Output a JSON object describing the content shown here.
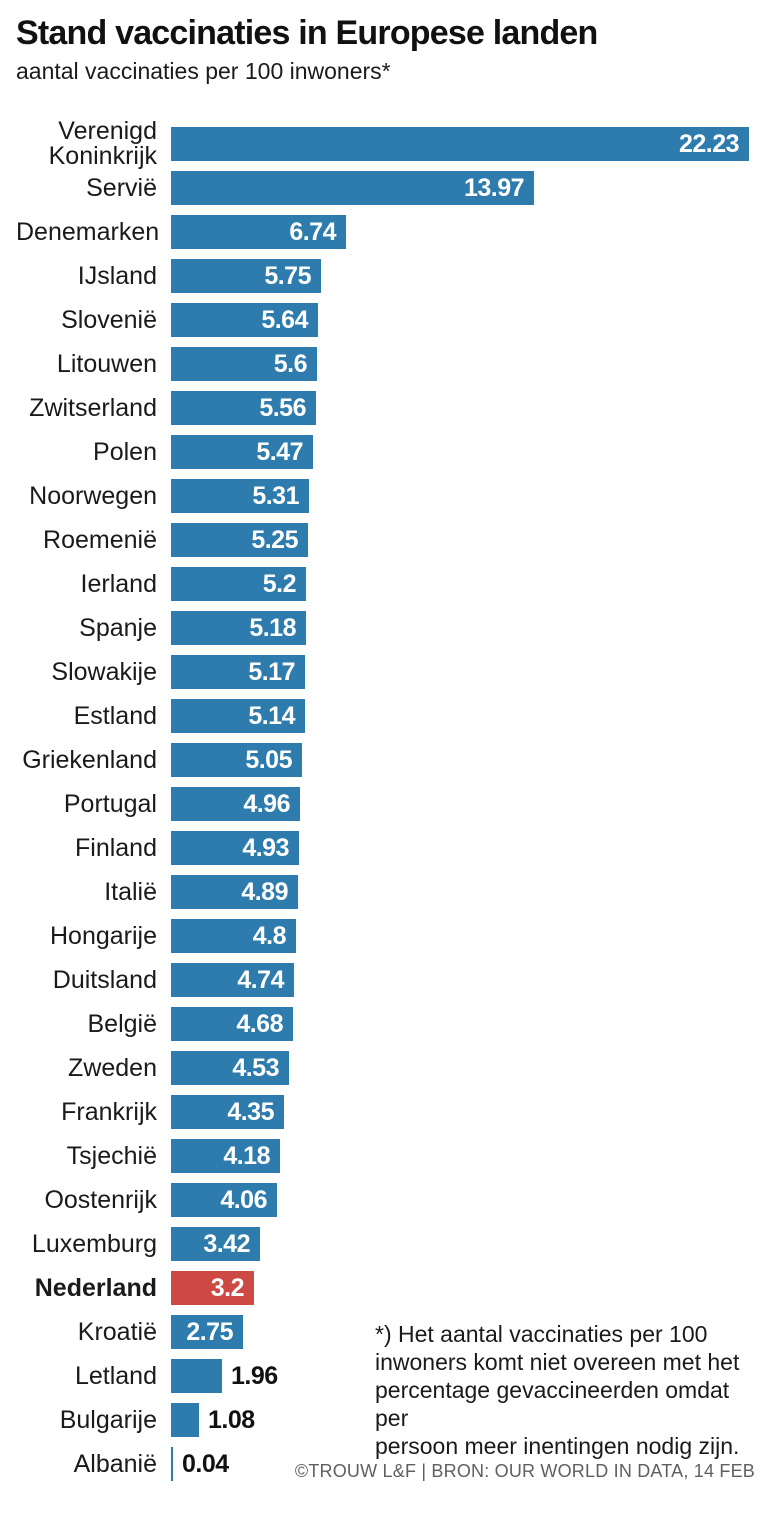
{
  "header": {
    "title": "Stand vaccinaties in Europese landen",
    "subtitle": "aantal vaccinaties per 100 inwoners*"
  },
  "chart_data": {
    "type": "bar",
    "orientation": "horizontal",
    "title": "Stand vaccinaties in Europese landen",
    "subtitle": "aantal vaccinaties per 100 inwoners*",
    "xlabel": "aantal vaccinaties per 100 inwoners",
    "ylabel": "land",
    "xlim": [
      0,
      22.5
    ],
    "grid": false,
    "bar_color": "#2e7bad",
    "highlight_color": "#cd4a44",
    "highlight_category": "Nederland",
    "categories": [
      "Verenigd Koninkrijk",
      "Servië",
      "Denemarken",
      "IJsland",
      "Slovenië",
      "Litouwen",
      "Zwitserland",
      "Polen",
      "Noorwegen",
      "Roemenië",
      "Ierland",
      "Spanje",
      "Slowakije",
      "Estland",
      "Griekenland",
      "Portugal",
      "Finland",
      "Italië",
      "Hongarije",
      "Duitsland",
      "België",
      "Zweden",
      "Frankrijk",
      "Tsjechië",
      "Oostenrijk",
      "Luxemburg",
      "Nederland",
      "Kroatië",
      "Letland",
      "Bulgarije",
      "Albanië"
    ],
    "values": [
      22.23,
      13.97,
      6.74,
      5.75,
      5.64,
      5.6,
      5.56,
      5.47,
      5.31,
      5.25,
      5.2,
      5.18,
      5.17,
      5.14,
      5.05,
      4.96,
      4.93,
      4.89,
      4.8,
      4.74,
      4.68,
      4.53,
      4.35,
      4.18,
      4.06,
      3.42,
      3.2,
      2.75,
      1.96,
      1.08,
      0.04
    ],
    "value_labels": [
      "22.23",
      "13.97",
      "6.74",
      "5.75",
      "5.64",
      "5.6",
      "5.56",
      "5.47",
      "5.31",
      "5.25",
      "5.2",
      "5.18",
      "5.17",
      "5.14",
      "5.05",
      "4.96",
      "4.93",
      "4.89",
      "4.8",
      "4.74",
      "4.68",
      "4.53",
      "4.35",
      "4.18",
      "4.06",
      "3.42",
      "3.2",
      "2.75",
      "1.96",
      "1.08",
      "0.04"
    ]
  },
  "footnote": {
    "lines": [
      "*) Het aantal vaccinaties per 100",
      "inwoners komt niet overeen met het",
      "percentage gevaccineerden omdat per",
      "persoon meer inentingen nodig zijn."
    ]
  },
  "footer": {
    "credit": "©TROUW L&F | BRON: OUR WORLD IN DATA, 14 FEB"
  }
}
